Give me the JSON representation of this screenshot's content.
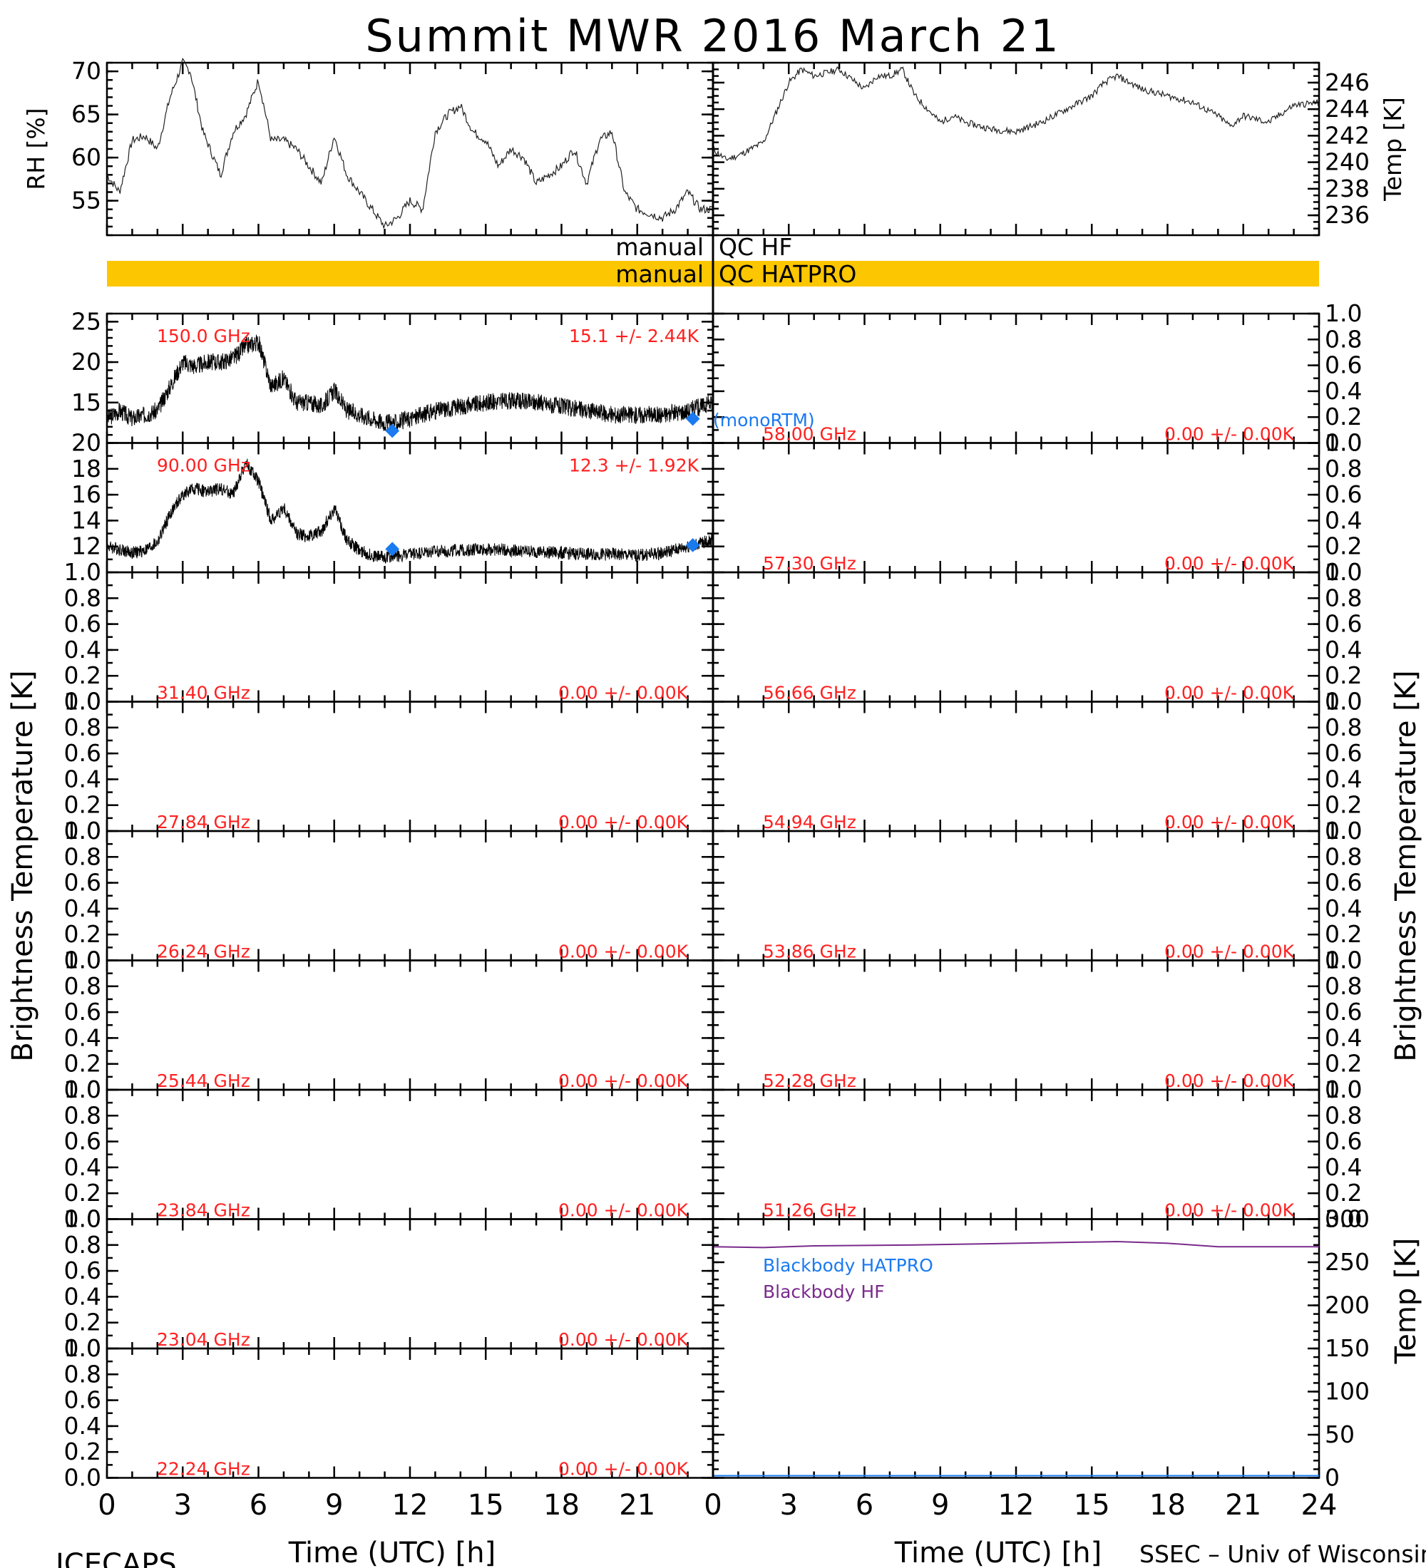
{
  "title": "Summit MWR 2016 March 21",
  "footer": {
    "left": "ICECAPS",
    "right": "SSEC – Univ of Wisconsin"
  },
  "y_label_left": "Brightness Temperature [K]",
  "y_label_right": "Brightness Temperature [K]",
  "qc": {
    "hf_label": "manual",
    "hf_name": "QC HF",
    "hatpro_label": "manual",
    "hatpro_name": "QC HATPRO",
    "hatpro_color": "#fcc600"
  },
  "legend": {
    "monortm": "(monoRTM)",
    "bb_hatpro": "Blackbody HATPRO",
    "bb_hf": "Blackbody HF"
  },
  "colors": {
    "red": "#ff2020",
    "blue": "#1a7af0",
    "purple": "#7a2a8c"
  },
  "chart_data": [
    {
      "type": "line",
      "panel": "rh",
      "ylabel": "RH [%]",
      "ylim": [
        51,
        71
      ],
      "yticks": [
        "55",
        "60",
        "65",
        "70"
      ],
      "xlim": [
        0,
        24
      ],
      "x": [
        0,
        0.5,
        1,
        1.5,
        2,
        2.5,
        3,
        3.3,
        3.8,
        4.5,
        5,
        5.5,
        6,
        6.5,
        7,
        7.5,
        8,
        8.5,
        9,
        9.5,
        10,
        10.5,
        11,
        11.5,
        12,
        12.5,
        13,
        13.5,
        14,
        14.5,
        15,
        15.5,
        16,
        16.5,
        17,
        17.5,
        18,
        18.5,
        19,
        19.5,
        20,
        20.5,
        21,
        21.5,
        22,
        22.5,
        23,
        23.5,
        24
      ],
      "y": [
        58,
        56,
        62,
        62.5,
        61,
        67,
        71,
        70,
        63,
        58,
        63,
        65,
        69,
        62,
        62,
        61,
        59,
        57,
        62.5,
        58,
        56,
        54,
        52,
        53,
        55,
        54,
        63,
        65,
        66,
        63,
        62,
        59,
        61,
        60,
        57,
        58,
        59,
        61,
        57,
        62,
        63,
        56,
        54,
        53.5,
        53,
        54,
        56,
        54,
        54
      ]
    },
    {
      "type": "line",
      "panel": "temp",
      "ylabel": "Temp [K]",
      "ylim": [
        234.5,
        247.5
      ],
      "yticks": [
        "236",
        "238",
        "240",
        "242",
        "244",
        "246"
      ],
      "xlim": [
        0,
        24
      ],
      "x": [
        0,
        0.5,
        1,
        2,
        3,
        3.5,
        4,
        5,
        6,
        6.5,
        7,
        7.5,
        8,
        8.5,
        9,
        9.5,
        10,
        11,
        12,
        13,
        14,
        15,
        15.5,
        16,
        17,
        18,
        19,
        20,
        20.5,
        21,
        22,
        23,
        24
      ],
      "y": [
        241,
        240.2,
        240.5,
        241.5,
        246,
        247,
        246.5,
        247,
        245.5,
        246.5,
        246.5,
        247,
        245,
        244,
        243,
        243.5,
        243,
        242.5,
        242.3,
        243,
        244,
        245,
        246,
        246.5,
        245.5,
        245,
        244.5,
        243.5,
        242.7,
        243.5,
        243,
        244.3,
        244.5
      ]
    },
    {
      "type": "line",
      "panel": "tb150",
      "label": "150.0 GHz",
      "stat": "15.1 +/-  2.44K",
      "ylim": [
        10,
        26
      ],
      "yticks": [
        "15",
        "20",
        "25"
      ],
      "xlim": [
        0,
        24
      ],
      "x": [
        0,
        0.5,
        1,
        1.5,
        2,
        2.5,
        3,
        3.5,
        4,
        4.5,
        5,
        5.5,
        6,
        6.5,
        7,
        7.5,
        8,
        8.5,
        9,
        9.5,
        10,
        10.5,
        11,
        11.5,
        12,
        12.5,
        13,
        14,
        15,
        16,
        17,
        18,
        19,
        20,
        21,
        22,
        23,
        24
      ],
      "y": [
        13,
        14,
        13,
        13.5,
        14,
        17,
        20,
        19.5,
        20,
        20,
        20.5,
        22,
        22.5,
        17,
        18,
        15,
        15,
        14.5,
        16.5,
        14,
        13.5,
        13,
        12.5,
        12.5,
        13,
        13.5,
        14,
        14.5,
        15,
        15.2,
        15,
        14.5,
        14,
        13.5,
        13.5,
        13.5,
        14,
        15
      ],
      "markers": [
        {
          "x": 11.3,
          "y": 11.5
        },
        {
          "x": 23.2,
          "y": 13
        }
      ]
    },
    {
      "type": "line",
      "panel": "tb90",
      "label": "90.00 GHz",
      "stat": "12.3 +/-  1.92K",
      "ylim": [
        10,
        20
      ],
      "yticks": [
        "12",
        "14",
        "16",
        "18",
        "20"
      ],
      "xlim": [
        0,
        24
      ],
      "x": [
        0,
        0.5,
        1,
        1.5,
        2,
        2.5,
        3,
        3.5,
        4,
        4.5,
        5,
        5.5,
        6,
        6.5,
        7,
        7.5,
        8,
        8.5,
        9,
        9.5,
        10,
        10.5,
        11,
        12,
        13,
        14,
        15,
        16,
        17,
        18,
        19,
        20,
        21,
        22,
        23,
        24
      ],
      "y": [
        12,
        11.8,
        11.5,
        11.7,
        12.3,
        14.5,
        16,
        16.5,
        16.2,
        16.5,
        16,
        18.5,
        17,
        14,
        15,
        13,
        12.8,
        13.2,
        15,
        12.5,
        11.7,
        11.3,
        11.2,
        11.4,
        11.6,
        11.7,
        11.8,
        11.7,
        11.6,
        11.5,
        11.4,
        11.4,
        11.3,
        11.5,
        12,
        12.5
      ],
      "markers": [
        {
          "x": 11.3,
          "y": 11.8
        },
        {
          "x": 23.2,
          "y": 12.1
        }
      ]
    },
    {
      "type": "line",
      "panel": "bb",
      "ylabel": "Temp [K]",
      "ylim": [
        0,
        300
      ],
      "yticks": [
        "0",
        "50",
        "100",
        "150",
        "200",
        "250",
        "300"
      ],
      "xlim": [
        0,
        24
      ],
      "series": [
        {
          "name": "Blackbody HATPRO",
          "x": [
            0,
            24
          ],
          "y": [
            0,
            0
          ]
        },
        {
          "name": "Blackbody HF",
          "x": [
            0,
            2,
            4,
            8,
            12,
            16,
            18,
            20,
            24
          ],
          "y": [
            268,
            267,
            269,
            270,
            272,
            274,
            272,
            268,
            268
          ]
        }
      ]
    }
  ],
  "left_channels": [
    {
      "label": "150.0 GHz",
      "stat": "15.1 +/-  2.44K"
    },
    {
      "label": "90.00 GHz",
      "stat": "12.3 +/-  1.92K"
    },
    {
      "label": "31.40 GHz",
      "stat": "0.00 +/-  0.00K"
    },
    {
      "label": "27.84 GHz",
      "stat": "0.00 +/-  0.00K"
    },
    {
      "label": "26.24 GHz",
      "stat": "0.00 +/-  0.00K"
    },
    {
      "label": "25.44 GHz",
      "stat": "0.00 +/-  0.00K"
    },
    {
      "label": "23.84 GHz",
      "stat": "0.00 +/-  0.00K"
    },
    {
      "label": "23.04 GHz",
      "stat": "0.00 +/-  0.00K"
    },
    {
      "label": "22.24 GHz",
      "stat": "0.00 +/-  0.00K"
    }
  ],
  "right_channels": [
    {
      "label": "58.00 GHz",
      "stat": "0.00 +/-  0.00K"
    },
    {
      "label": "57.30 GHz",
      "stat": "0.00 +/-  0.00K"
    },
    {
      "label": "56.66 GHz",
      "stat": "0.00 +/-  0.00K"
    },
    {
      "label": "54.94 GHz",
      "stat": "0.00 +/-  0.00K"
    },
    {
      "label": "53.86 GHz",
      "stat": "0.00 +/-  0.00K"
    },
    {
      "label": "52.28 GHz",
      "stat": "0.00 +/-  0.00K"
    },
    {
      "label": "51.26 GHz",
      "stat": "0.00 +/-  0.00K"
    }
  ],
  "unit_ticks": [
    "0.0",
    "0.2",
    "0.4",
    "0.6",
    "0.8",
    "1.0"
  ],
  "x_axis": {
    "ticks": [
      "0",
      "3",
      "6",
      "9",
      "12",
      "15",
      "18",
      "21"
    ],
    "ticks_right": [
      "0",
      "3",
      "6",
      "9",
      "12",
      "15",
      "18",
      "21",
      "24"
    ],
    "label": "Time (UTC) [h]"
  }
}
